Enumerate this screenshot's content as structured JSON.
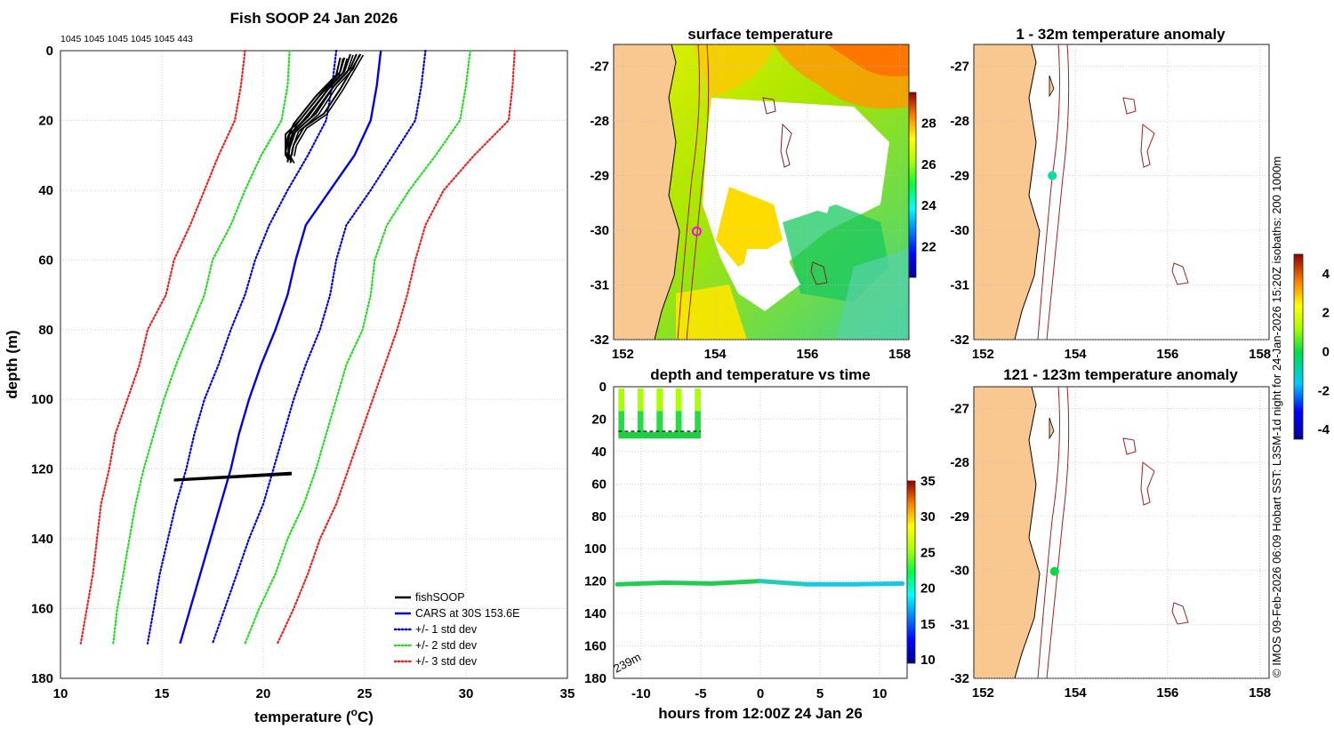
{
  "footer_credit": "© IMOS 09-Feb-2026 06:09 Hobart SST: L3SM-1d night for 24-Jan-2026 15:20Z isobaths: 200  1000m",
  "chart_data": [
    {
      "id": "profile",
      "type": "line",
      "title": "Fish SOOP 24 Jan 2026",
      "subtitle": "1045 1045 1045 1045 1045 443",
      "xlabel": "temperature (°C)",
      "xlabel_main": "temperature (",
      "xlabel_sup": "o",
      "xlabel_tail": "C)",
      "ylabel": "depth (m)",
      "xlim": [
        10,
        35
      ],
      "ylim": [
        0,
        180
      ],
      "y_inverted": true,
      "xticks": [
        10,
        15,
        20,
        25,
        30,
        35
      ],
      "yticks": [
        0,
        20,
        40,
        60,
        80,
        100,
        120,
        140,
        160,
        180
      ],
      "grid": true,
      "legend_position": "bottom-right",
      "depth_levels": [
        0,
        10,
        20,
        30,
        40,
        50,
        60,
        70,
        80,
        90,
        100,
        110,
        120,
        130,
        140,
        150,
        160,
        170
      ],
      "series": [
        {
          "name": "CARS at 30S 153.6E",
          "style": "solid",
          "color": "#0000ee",
          "values": [
            25.8,
            25.6,
            25.3,
            24.5,
            23.3,
            22.1,
            21.6,
            21.2,
            20.6,
            19.9,
            19.3,
            18.8,
            18.4,
            17.9,
            17.4,
            16.9,
            16.4,
            15.9
          ]
        },
        {
          "name": "+/- 1 std dev (upper)",
          "legend": "+/- 1 std dev",
          "style": "dotted",
          "color": "#0000ee",
          "values": [
            28.0,
            27.8,
            27.5,
            26.4,
            25.3,
            24.1,
            23.6,
            23.3,
            22.8,
            22.1,
            21.5,
            21.0,
            20.5,
            20.0,
            19.3,
            18.7,
            18.1,
            17.5
          ]
        },
        {
          "name": "+/- 1 std dev (lower)",
          "style": "dotted",
          "color": "#0000ee",
          "values": [
            23.6,
            23.4,
            23.1,
            22.2,
            21.2,
            20.3,
            19.6,
            19.1,
            18.4,
            17.8,
            17.1,
            16.6,
            16.2,
            15.7,
            15.3,
            14.9,
            14.6,
            14.3
          ]
        },
        {
          "name": "+/- 2 std dev (upper)",
          "legend": "+/- 2 std dev",
          "style": "dotted",
          "color": "#22dd22",
          "values": [
            30.2,
            30.0,
            29.7,
            28.5,
            27.2,
            26.1,
            25.5,
            25.3,
            24.9,
            24.1,
            23.6,
            23.1,
            22.6,
            22.0,
            21.2,
            20.6,
            19.8,
            19.1
          ]
        },
        {
          "name": "+/- 2 std dev (lower)",
          "style": "dotted",
          "color": "#22dd22",
          "values": [
            21.3,
            21.2,
            20.9,
            19.9,
            19.1,
            18.4,
            17.5,
            17.1,
            16.4,
            15.7,
            15.1,
            14.6,
            14.1,
            13.7,
            13.4,
            13.1,
            12.8,
            12.6
          ]
        },
        {
          "name": "+/- 3 std dev (upper)",
          "legend": "+/- 3 std dev",
          "style": "dotted",
          "color": "#ee2222",
          "values": [
            32.4,
            32.3,
            32.1,
            30.4,
            28.9,
            28.0,
            27.5,
            27.1,
            26.6,
            26.0,
            25.4,
            24.8,
            24.2,
            23.6,
            22.8,
            22.2,
            21.5,
            20.7
          ]
        },
        {
          "name": "+/- 3 std dev (lower)",
          "style": "dotted",
          "color": "#ee2222",
          "values": [
            19.1,
            18.9,
            18.6,
            17.8,
            17.1,
            16.4,
            15.6,
            15.2,
            14.3,
            13.9,
            13.3,
            12.7,
            12.4,
            12.0,
            11.8,
            11.6,
            11.3,
            11.0
          ]
        }
      ],
      "fishSOOP": {
        "name": "fishSOOP",
        "color": "#000000",
        "shallow_casts": [
          {
            "depth": [
              1,
              5,
              10,
              18,
              23,
              28,
              32
            ],
            "temp": [
              24.6,
              24.3,
              23.5,
              22.6,
              21.6,
              21.3,
              21.2
            ]
          },
          {
            "depth": [
              1,
              6,
              11,
              19,
              24,
              29,
              31
            ],
            "temp": [
              24.3,
              24.0,
              23.2,
              22.2,
              21.3,
              21.1,
              21.2
            ]
          },
          {
            "depth": [
              2,
              6,
              12,
              20,
              24,
              30,
              31
            ],
            "temp": [
              24.0,
              23.8,
              22.9,
              21.8,
              21.1,
              21.1,
              21.3
            ]
          },
          {
            "depth": [
              1,
              5,
              11,
              18,
              22,
              27,
              30
            ],
            "temp": [
              24.8,
              24.4,
              23.8,
              23.0,
              22.0,
              21.5,
              21.4
            ]
          },
          {
            "depth": [
              2,
              7,
              13,
              21,
              25,
              29,
              32
            ],
            "temp": [
              23.8,
              23.6,
              22.6,
              21.5,
              21.2,
              21.1,
              21.4
            ]
          }
        ],
        "deep_segment": {
          "temp_range": [
            15.6,
            21.4
          ],
          "depth_start": 123,
          "depth_end": 121
        }
      }
    },
    {
      "id": "sst",
      "type": "heatmap",
      "title": "surface temperature",
      "xlim": [
        151.8,
        158.2
      ],
      "ylim": [
        -32,
        -26.6
      ],
      "xticks": [
        152,
        154,
        156,
        158
      ],
      "yticks": [
        -27,
        -28,
        -29,
        -30,
        -31,
        -32
      ],
      "colorbar_ticks": [
        22,
        24,
        26,
        28
      ],
      "colorbar_range": [
        20.5,
        29.5
      ],
      "marker": {
        "lon": 153.6,
        "lat": -30.02,
        "style": "circle",
        "color": "#ff00ff"
      }
    },
    {
      "id": "anom_shallow",
      "type": "scatter",
      "title": "1 - 32m temperature anomaly",
      "xlim": [
        151.8,
        158.2
      ],
      "ylim": [
        -32,
        -26.6
      ],
      "xticks": [
        152,
        154,
        156,
        158
      ],
      "yticks": [
        -27,
        -28,
        -29,
        -30,
        -31,
        -32
      ],
      "points": [
        {
          "lon": 153.5,
          "lat": -29.0,
          "anomaly": -0.7
        }
      ]
    },
    {
      "id": "anom_deep",
      "type": "scatter",
      "title": "121 - 123m temperature anomaly",
      "xlim": [
        151.8,
        158.2
      ],
      "ylim": [
        -32,
        -26.6
      ],
      "xticks": [
        152,
        154,
        156,
        158
      ],
      "yticks": [
        -27,
        -28,
        -29,
        -30,
        -31,
        -32
      ],
      "points": [
        {
          "lon": 153.55,
          "lat": -30.02,
          "anomaly": 0.4
        }
      ]
    },
    {
      "id": "anom_colorbar",
      "type": "heatmap",
      "colorbar_ticks": [
        -4,
        -2,
        0,
        2,
        4
      ],
      "colorbar_range": [
        -4.5,
        5
      ]
    },
    {
      "id": "time_depth",
      "type": "scatter",
      "title": "depth and temperature vs time",
      "xlabel": "hours from 12:00Z 24 Jan 26",
      "xlim": [
        -12.3,
        12.3
      ],
      "ylim": [
        0,
        180
      ],
      "y_inverted": true,
      "xticks": [
        -10,
        -5,
        0,
        5,
        10
      ],
      "yticks": [
        0,
        20,
        40,
        60,
        80,
        100,
        120,
        140,
        160,
        180
      ],
      "bottom_depth_label": "239m",
      "colorbar_ticks": [
        10,
        15,
        20,
        25,
        30,
        35
      ],
      "colorbar_range": [
        9.5,
        35
      ],
      "casts": [
        {
          "time_start": -11.9,
          "time_end": -11.4
        },
        {
          "time_start": -10.3,
          "time_end": -9.8
        },
        {
          "time_start": -8.7,
          "time_end": -8.2
        },
        {
          "time_start": -7.1,
          "time_end": -6.6
        },
        {
          "time_start": -5.5,
          "time_end": -5.0
        }
      ],
      "deep_track": {
        "time_start": -12.0,
        "time_end": 11.9,
        "depth": [
          122,
          121,
          121.5,
          120,
          122,
          122,
          121.5
        ],
        "temp": [
          21,
          21,
          21,
          19,
          18,
          18,
          18
        ]
      }
    }
  ]
}
